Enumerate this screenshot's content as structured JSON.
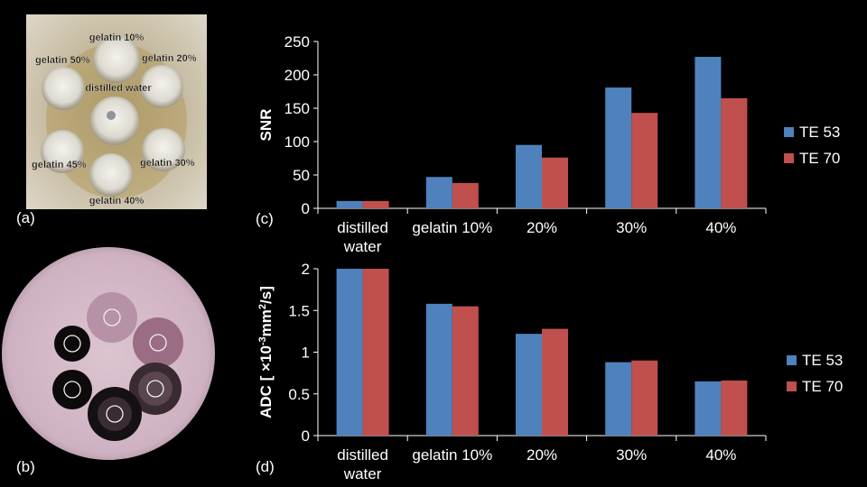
{
  "panels": {
    "a": "(a)",
    "b": "(b)",
    "c": "(c)",
    "d": "(d)"
  },
  "photo": {
    "labels": {
      "top": "gelatin 10%",
      "top_left": "gelatin 50%",
      "top_right": "gelatin 20%",
      "center": "distilled water",
      "bottom_left": "gelatin 45%",
      "bottom_right": "gelatin 30%",
      "bottom": "gelatin 40%"
    }
  },
  "colors": {
    "te53": "#4f81bd",
    "te70": "#c0504d"
  },
  "chart_data": [
    {
      "type": "bar",
      "categories": [
        [
          "distilled",
          "water"
        ],
        [
          "gelatin 10%"
        ],
        [
          "20%"
        ],
        [
          "30%"
        ],
        [
          "40%"
        ]
      ],
      "series": [
        {
          "name": "TE 53",
          "values": [
            11,
            47,
            95,
            181,
            227
          ]
        },
        {
          "name": "TE 70",
          "values": [
            11,
            38,
            76,
            143,
            165
          ]
        }
      ],
      "ylabel": "SNR",
      "ylim": [
        0,
        250
      ],
      "yticks": [
        "0",
        "50",
        "100",
        "150",
        "200",
        "250"
      ],
      "legend": "right",
      "grid": false
    },
    {
      "type": "bar",
      "categories": [
        [
          "distilled",
          "water"
        ],
        [
          "gelatin 10%"
        ],
        [
          "20%"
        ],
        [
          "30%"
        ],
        [
          "40%"
        ]
      ],
      "series": [
        {
          "name": "TE 53",
          "values": [
            2.0,
            1.58,
            1.22,
            0.88,
            0.65
          ]
        },
        {
          "name": "TE 70",
          "values": [
            2.0,
            1.55,
            1.28,
            0.9,
            0.66
          ]
        }
      ],
      "ylabel": "ADC [ ×10-3mm2/s]",
      "ylim": [
        0,
        2
      ],
      "yticks": [
        "0",
        "0.5",
        "1",
        "1.5",
        "2"
      ],
      "legend": "right",
      "grid": false
    }
  ]
}
